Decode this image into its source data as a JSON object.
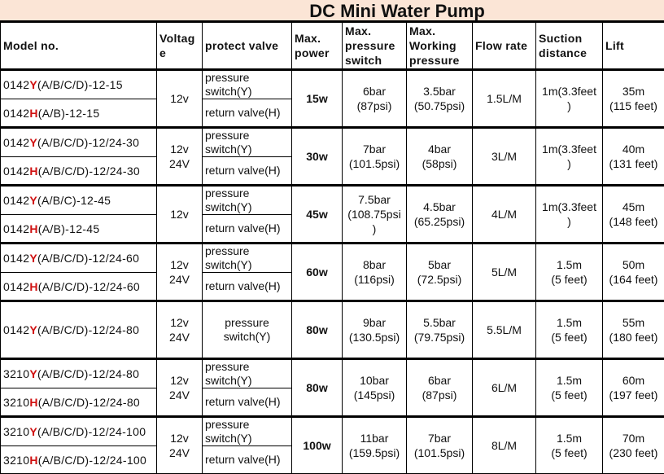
{
  "title": "DC Mini Water Pump",
  "headers": {
    "model": "Model no.",
    "voltage": [
      "Voltag",
      "e"
    ],
    "valve": "protect valve",
    "power": [
      "Max.",
      "power"
    ],
    "pressure_switch": [
      "Max.",
      "pressure",
      "switch"
    ],
    "working": [
      "Max.",
      "Working",
      "pressure"
    ],
    "flow": "Flow rate",
    "suction": [
      "Suction",
      "distance"
    ],
    "lift": "Lift"
  },
  "colors": {
    "title_bg": "#fbe5d6",
    "model_code": "#d01010"
  },
  "groups": [
    {
      "models": [
        {
          "prefix": "0142",
          "code": "Y",
          "suffix": "(A/B/C/D)-12-15"
        },
        {
          "prefix": "0142",
          "code": "H",
          "suffix": "(A/B)-12-15"
        }
      ],
      "voltage": [
        "12v"
      ],
      "valves": [
        "pressure switch(Y)",
        "return valve(H)"
      ],
      "power": "15w",
      "pressure_switch": [
        "6bar",
        "(87psi)"
      ],
      "working": [
        "3.5bar",
        "(50.75psi)"
      ],
      "flow": "1.5L/M",
      "suction": [
        "1m(3.3feet",
        ")"
      ],
      "lift": [
        "35m",
        "(115 feet)"
      ]
    },
    {
      "models": [
        {
          "prefix": "0142",
          "code": "Y",
          "suffix": "(A/B/C/D)-12/24-30"
        },
        {
          "prefix": "0142",
          "code": "H",
          "suffix": "(A/B/C/D)-12/24-30"
        }
      ],
      "voltage": [
        "12v",
        "24V"
      ],
      "valves": [
        "pressure switch(Y)",
        "return valve(H)"
      ],
      "power": "30w",
      "pressure_switch": [
        "7bar",
        "(101.5psi)"
      ],
      "working": [
        "4bar",
        "(58psi)"
      ],
      "flow": "3L/M",
      "suction": [
        "1m(3.3feet",
        ")"
      ],
      "lift": [
        "40m",
        "(131 feet)"
      ]
    },
    {
      "models": [
        {
          "prefix": "0142",
          "code": "Y",
          "suffix": "(A/B/C)-12-45"
        },
        {
          "prefix": "0142",
          "code": "H",
          "suffix": "(A/B)-12-45"
        }
      ],
      "voltage": [
        "12v"
      ],
      "valves": [
        "pressure switch(Y)",
        "return valve(H)"
      ],
      "power": "45w",
      "pressure_switch": [
        "7.5bar",
        "(108.75psi",
        ")"
      ],
      "working": [
        "4.5bar",
        "(65.25psi)"
      ],
      "flow": "4L/M",
      "suction": [
        "1m(3.3feet",
        ")"
      ],
      "lift": [
        "45m",
        "(148 feet)"
      ]
    },
    {
      "models": [
        {
          "prefix": "0142",
          "code": "Y",
          "suffix": "(A/B/C/D)-12/24-60"
        },
        {
          "prefix": "0142",
          "code": "H",
          "suffix": "(A/B/C/D)-12/24-60"
        }
      ],
      "voltage": [
        "12v",
        "24V"
      ],
      "valves": [
        "pressure switch(Y)",
        "return valve(H)"
      ],
      "power": "60w",
      "pressure_switch": [
        "8bar",
        "(116psi)"
      ],
      "working": [
        "5bar",
        "(72.5psi)"
      ],
      "flow": "5L/M",
      "suction": [
        "1.5m",
        "(5 feet)"
      ],
      "lift": [
        "50m",
        "(164 feet)"
      ]
    },
    {
      "models": [
        {
          "prefix": "0142",
          "code": "Y",
          "suffix": "(A/B/C/D)-12/24-80"
        }
      ],
      "voltage": [
        "12v",
        "24V"
      ],
      "valves": [
        "pressure switch(Y)"
      ],
      "power": "80w",
      "pressure_switch": [
        "9bar",
        "(130.5psi)"
      ],
      "working": [
        "5.5bar",
        "(79.75psi)"
      ],
      "flow": "5.5L/M",
      "suction": [
        "1.5m",
        "(5 feet)"
      ],
      "lift": [
        "55m",
        "(180 feet)"
      ]
    },
    {
      "models": [
        {
          "prefix": "3210",
          "code": "Y",
          "suffix": "(A/B/C/D)-12/24-80"
        },
        {
          "prefix": "3210",
          "code": "H",
          "suffix": "(A/B/C/D)-12/24-80"
        }
      ],
      "voltage": [
        "12v",
        "24V"
      ],
      "valves": [
        "pressure switch(Y)",
        "return valve(H)"
      ],
      "power": "80w",
      "pressure_switch": [
        "10bar",
        "(145psi)"
      ],
      "working": [
        "6bar",
        "(87psi)"
      ],
      "flow": "6L/M",
      "suction": [
        "1.5m",
        "(5 feet)"
      ],
      "lift": [
        "60m",
        "(197 feet)"
      ]
    },
    {
      "models": [
        {
          "prefix": "3210",
          "code": "Y",
          "suffix": "(A/B/C/D)-12/24-100"
        },
        {
          "prefix": "3210",
          "code": "H",
          "suffix": "(A/B/C/D)-12/24-100"
        }
      ],
      "voltage": [
        "12v",
        "24V"
      ],
      "valves": [
        "pressure switch(Y)",
        "return valve(H)"
      ],
      "power": "100w",
      "pressure_switch": [
        "11bar",
        "(159.5psi)"
      ],
      "working": [
        "7bar",
        "(101.5psi)"
      ],
      "flow": "8L/M",
      "suction": [
        "1.5m",
        "(5 feet)"
      ],
      "lift": [
        "70m",
        "(230 feet)"
      ]
    }
  ]
}
